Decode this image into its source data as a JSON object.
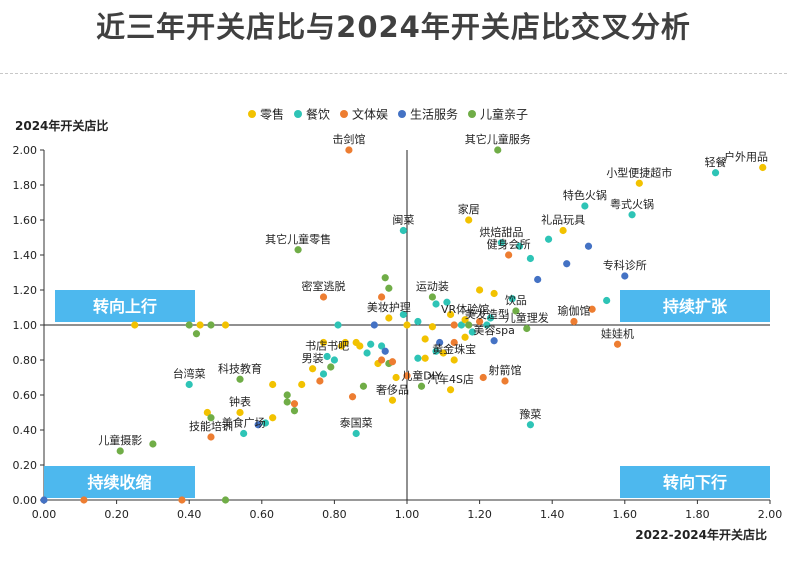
{
  "chart_data": {
    "type": "scatter",
    "title": "近三年开关店比与2024年开关店比交叉分析",
    "xlabel": "2022-2024年开关店比",
    "ylabel": "2024年开关店比",
    "xlim": [
      0,
      2
    ],
    "ylim": [
      0,
      2
    ],
    "xticks": [
      "0.00",
      "0.20",
      "0.40",
      "0.60",
      "0.80",
      "1.00",
      "1.20",
      "1.40",
      "1.60",
      "1.80",
      "2.00"
    ],
    "yticks": [
      "0.00",
      "0.20",
      "0.40",
      "0.60",
      "0.80",
      "1.00",
      "1.20",
      "1.40",
      "1.60",
      "1.80",
      "2.00"
    ],
    "reference_lines": {
      "x": 1.0,
      "y": 1.0
    },
    "legend_position": "top",
    "series": [
      {
        "name": "零售",
        "color": "#F2C200"
      },
      {
        "name": "餐饮",
        "color": "#2EC4B6"
      },
      {
        "name": "文体娱",
        "color": "#ED7D31"
      },
      {
        "name": "生活服务",
        "color": "#4472C4"
      },
      {
        "name": "儿童亲子",
        "color": "#70AD47"
      }
    ],
    "quadrants": [
      {
        "label": "转向上行",
        "position": "top-left"
      },
      {
        "label": "持续扩张",
        "position": "top-right"
      },
      {
        "label": "持续收缩",
        "position": "bottom-left"
      },
      {
        "label": "转向下行",
        "position": "bottom-right"
      }
    ],
    "points": [
      {
        "x": 0.0,
        "y": 0.0,
        "s": 3
      },
      {
        "x": 0.11,
        "y": 0.0,
        "s": 2
      },
      {
        "x": 0.21,
        "y": 0.28,
        "s": 4,
        "label": "儿童摄影"
      },
      {
        "x": 0.3,
        "y": 0.32,
        "s": 4
      },
      {
        "x": 0.25,
        "y": 1.0,
        "s": 0
      },
      {
        "x": 0.38,
        "y": 0.0,
        "s": 2
      },
      {
        "x": 0.5,
        "y": 0.0,
        "s": 4
      },
      {
        "x": 0.4,
        "y": 1.0,
        "s": 4
      },
      {
        "x": 0.43,
        "y": 1.0,
        "s": 0
      },
      {
        "x": 0.46,
        "y": 1.0,
        "s": 4
      },
      {
        "x": 0.5,
        "y": 1.0,
        "s": 0
      },
      {
        "x": 0.42,
        "y": 0.95,
        "s": 4
      },
      {
        "x": 0.45,
        "y": 0.5,
        "s": 0
      },
      {
        "x": 0.46,
        "y": 0.47,
        "s": 4
      },
      {
        "x": 0.4,
        "y": 0.66,
        "s": 1,
        "label": "台湾菜"
      },
      {
        "x": 0.46,
        "y": 0.36,
        "s": 2,
        "label": "技能培训"
      },
      {
        "x": 0.54,
        "y": 0.69,
        "s": 4,
        "label": "科技教育"
      },
      {
        "x": 0.54,
        "y": 0.5,
        "s": 0,
        "label": "钟表"
      },
      {
        "x": 0.55,
        "y": 0.38,
        "s": 1,
        "label": "美食广场"
      },
      {
        "x": 0.59,
        "y": 0.43,
        "s": 3
      },
      {
        "x": 0.61,
        "y": 0.44,
        "s": 1
      },
      {
        "x": 0.63,
        "y": 0.47,
        "s": 0
      },
      {
        "x": 0.63,
        "y": 0.66,
        "s": 0
      },
      {
        "x": 0.67,
        "y": 0.6,
        "s": 4
      },
      {
        "x": 0.67,
        "y": 0.56,
        "s": 4
      },
      {
        "x": 0.69,
        "y": 0.55,
        "s": 2
      },
      {
        "x": 0.69,
        "y": 0.51,
        "s": 4
      },
      {
        "x": 0.71,
        "y": 0.66,
        "s": 0
      },
      {
        "x": 0.7,
        "y": 1.43,
        "s": 4,
        "label": "其它儿童零售"
      },
      {
        "x": 0.74,
        "y": 0.75,
        "s": 0,
        "label": "男装"
      },
      {
        "x": 0.76,
        "y": 0.68,
        "s": 2
      },
      {
        "x": 0.77,
        "y": 0.72,
        "s": 1
      },
      {
        "x": 0.77,
        "y": 1.16,
        "s": 2,
        "label": "密室逃脱"
      },
      {
        "x": 0.77,
        "y": 0.9,
        "s": 0
      },
      {
        "x": 0.78,
        "y": 0.82,
        "s": 1,
        "label": "书店书吧"
      },
      {
        "x": 0.79,
        "y": 0.76,
        "s": 4
      },
      {
        "x": 0.8,
        "y": 0.8,
        "s": 1
      },
      {
        "x": 0.81,
        "y": 1.0,
        "s": 1
      },
      {
        "x": 0.82,
        "y": 0.88,
        "s": 0
      },
      {
        "x": 0.83,
        "y": 0.9,
        "s": 0
      },
      {
        "x": 0.84,
        "y": 2.0,
        "s": 2,
        "label": "击剑馆"
      },
      {
        "x": 0.85,
        "y": 0.59,
        "s": 2
      },
      {
        "x": 0.86,
        "y": 0.9,
        "s": 0
      },
      {
        "x": 0.87,
        "y": 0.88,
        "s": 0
      },
      {
        "x": 0.86,
        "y": 0.38,
        "s": 1,
        "label": "泰国菜"
      },
      {
        "x": 0.88,
        "y": 0.65,
        "s": 4
      },
      {
        "x": 0.89,
        "y": 0.84,
        "s": 1
      },
      {
        "x": 0.9,
        "y": 0.89,
        "s": 1
      },
      {
        "x": 0.91,
        "y": 1.0,
        "s": 3
      },
      {
        "x": 0.92,
        "y": 0.78,
        "s": 0
      },
      {
        "x": 0.93,
        "y": 0.88,
        "s": 1
      },
      {
        "x": 0.93,
        "y": 0.8,
        "s": 2
      },
      {
        "x": 0.94,
        "y": 1.27,
        "s": 4
      },
      {
        "x": 0.95,
        "y": 1.21,
        "s": 4
      },
      {
        "x": 0.93,
        "y": 1.16,
        "s": 2
      },
      {
        "x": 0.94,
        "y": 0.85,
        "s": 3
      },
      {
        "x": 0.95,
        "y": 0.78,
        "s": 4
      },
      {
        "x": 0.95,
        "y": 1.04,
        "s": 0,
        "label": "美妆护理"
      },
      {
        "x": 0.96,
        "y": 0.57,
        "s": 0,
        "label": "奢侈品"
      },
      {
        "x": 0.96,
        "y": 0.79,
        "s": 2
      },
      {
        "x": 0.99,
        "y": 1.54,
        "s": 1,
        "label": "闽菜"
      },
      {
        "x": 0.97,
        "y": 0.7,
        "s": 0
      },
      {
        "x": 0.99,
        "y": 1.06,
        "s": 1
      },
      {
        "x": 1.0,
        "y": 1.0,
        "s": 0
      },
      {
        "x": 1.0,
        "y": 0.71,
        "s": 2
      },
      {
        "x": 1.03,
        "y": 1.02,
        "s": 1
      },
      {
        "x": 1.03,
        "y": 0.81,
        "s": 1
      },
      {
        "x": 1.04,
        "y": 0.65,
        "s": 4,
        "label": "儿童DIY"
      },
      {
        "x": 1.05,
        "y": 0.92,
        "s": 0
      },
      {
        "x": 1.05,
        "y": 0.81,
        "s": 0
      },
      {
        "x": 1.07,
        "y": 1.16,
        "s": 4,
        "label": "运动装"
      },
      {
        "x": 1.07,
        "y": 0.99,
        "s": 0
      },
      {
        "x": 1.08,
        "y": 0.85,
        "s": 1
      },
      {
        "x": 1.08,
        "y": 1.12,
        "s": 1
      },
      {
        "x": 1.09,
        "y": 0.9,
        "s": 3
      },
      {
        "x": 1.1,
        "y": 0.84,
        "s": 0
      },
      {
        "x": 1.11,
        "y": 1.13,
        "s": 1
      },
      {
        "x": 1.12,
        "y": 0.63,
        "s": 0,
        "label": "汽车4S店"
      },
      {
        "x": 1.12,
        "y": 1.06,
        "s": 0
      },
      {
        "x": 1.13,
        "y": 1.0,
        "s": 2
      },
      {
        "x": 1.13,
        "y": 0.8,
        "s": 0,
        "label": "黄金珠宝"
      },
      {
        "x": 1.13,
        "y": 0.9,
        "s": 2
      },
      {
        "x": 1.15,
        "y": 1.0,
        "s": 1
      },
      {
        "x": 1.16,
        "y": 1.03,
        "s": 0,
        "label": "VR体验馆"
      },
      {
        "x": 1.16,
        "y": 0.93,
        "s": 0
      },
      {
        "x": 1.17,
        "y": 1.6,
        "s": 0,
        "label": "家居"
      },
      {
        "x": 1.17,
        "y": 1.0,
        "s": 4
      },
      {
        "x": 1.18,
        "y": 0.96,
        "s": 1
      },
      {
        "x": 1.2,
        "y": 1.2,
        "s": 0
      },
      {
        "x": 1.2,
        "y": 1.02,
        "s": 2
      },
      {
        "x": 1.21,
        "y": 0.7,
        "s": 2
      },
      {
        "x": 1.22,
        "y": 1.0,
        "s": 1,
        "label": "美发造型"
      },
      {
        "x": 1.23,
        "y": 1.04,
        "s": 1
      },
      {
        "x": 1.24,
        "y": 1.18,
        "s": 0
      },
      {
        "x": 1.24,
        "y": 0.91,
        "s": 3,
        "label": "美容spa"
      },
      {
        "x": 1.25,
        "y": 2.0,
        "s": 4,
        "label": "其它儿童服务"
      },
      {
        "x": 1.26,
        "y": 1.47,
        "s": 1,
        "label": "烘焙甜品"
      },
      {
        "x": 1.27,
        "y": 0.68,
        "s": 2,
        "label": "射箭馆"
      },
      {
        "x": 1.28,
        "y": 1.4,
        "s": 2,
        "label": "健身会所"
      },
      {
        "x": 1.29,
        "y": 1.15,
        "s": 1
      },
      {
        "x": 1.3,
        "y": 1.08,
        "s": 4,
        "label": "饮品"
      },
      {
        "x": 1.31,
        "y": 1.45,
        "s": 1
      },
      {
        "x": 1.33,
        "y": 0.98,
        "s": 4,
        "label": "儿童理发"
      },
      {
        "x": 1.34,
        "y": 1.38,
        "s": 1
      },
      {
        "x": 1.34,
        "y": 0.43,
        "s": 1,
        "label": "豫菜"
      },
      {
        "x": 1.36,
        "y": 1.26,
        "s": 3
      },
      {
        "x": 1.39,
        "y": 1.49,
        "s": 1
      },
      {
        "x": 1.43,
        "y": 1.54,
        "s": 0,
        "label": "礼品玩具"
      },
      {
        "x": 1.44,
        "y": 1.35,
        "s": 3
      },
      {
        "x": 1.46,
        "y": 1.02,
        "s": 2,
        "label": "瑜伽馆"
      },
      {
        "x": 1.49,
        "y": 1.68,
        "s": 1,
        "label": "特色火锅"
      },
      {
        "x": 1.5,
        "y": 1.45,
        "s": 3
      },
      {
        "x": 1.51,
        "y": 1.09,
        "s": 2
      },
      {
        "x": 1.55,
        "y": 1.14,
        "s": 1
      },
      {
        "x": 1.58,
        "y": 0.89,
        "s": 2,
        "label": "娃娃机"
      },
      {
        "x": 1.6,
        "y": 1.28,
        "s": 3,
        "label": "专科诊所"
      },
      {
        "x": 1.62,
        "y": 1.63,
        "s": 1,
        "label": "粤式火锅"
      },
      {
        "x": 1.64,
        "y": 1.81,
        "s": 0,
        "label": "小型便捷超市"
      },
      {
        "x": 1.85,
        "y": 1.87,
        "s": 1,
        "label": "轻餐"
      },
      {
        "x": 1.98,
        "y": 1.9,
        "s": 0,
        "label": "户外用品"
      }
    ]
  }
}
